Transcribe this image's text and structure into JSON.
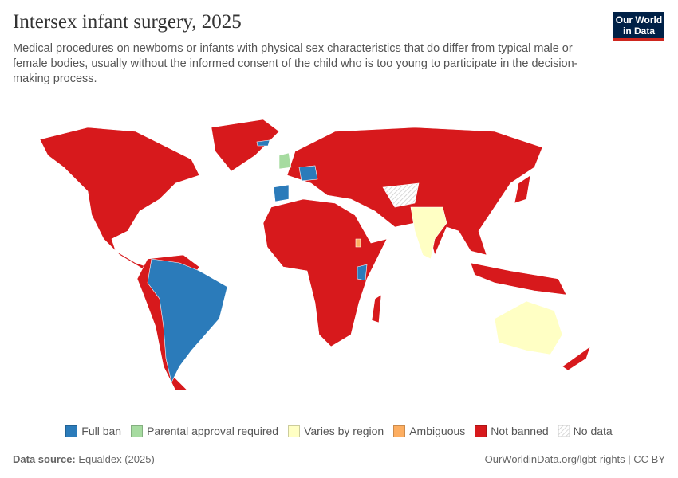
{
  "header": {
    "title": "Intersex infant surgery, 2025",
    "subtitle": "Medical procedures on newborns or infants with physical sex characteristics that do differ from typical male or female bodies, usually without the informed consent of the child who is too young to participate in the decision-making process.",
    "logo": "Our World in Data"
  },
  "legend": [
    {
      "label": "Full ban",
      "color": "#2b7bba"
    },
    {
      "label": "Parental approval required",
      "color": "#a6dba0"
    },
    {
      "label": "Varies by region",
      "color": "#ffffc4"
    },
    {
      "label": "Ambiguous",
      "color": "#fdae61"
    },
    {
      "label": "Not banned",
      "color": "#d7191c"
    },
    {
      "label": "No data",
      "color": "#eeeeee"
    }
  ],
  "footer": {
    "source_label": "Data source:",
    "source": "Equaldex (2025)",
    "url": "OurWorldinData.org/lgbt-rights | CC BY"
  }
}
